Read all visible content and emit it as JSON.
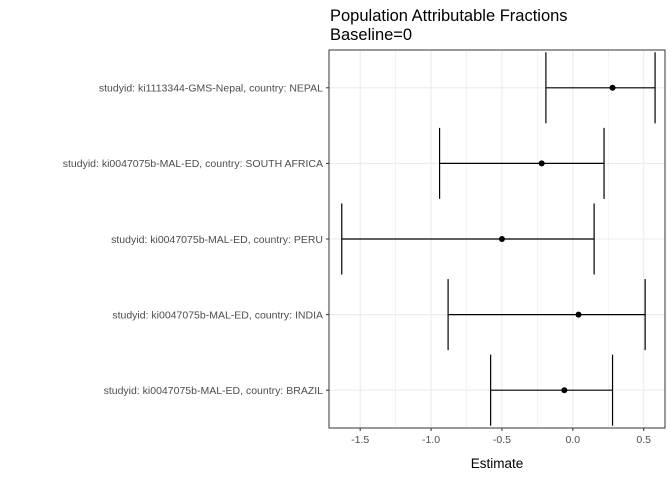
{
  "chart_data": {
    "type": "forest",
    "title": "Population Attributable Fractions",
    "subtitle": "Baseline=0",
    "xlabel": "Estimate",
    "ylabel": "",
    "xlim": [
      -1.72,
      0.65
    ],
    "xticks": [
      -1.5,
      -1.0,
      -0.5,
      0.0,
      0.5
    ],
    "xtick_labels": [
      "-1.5",
      "-1.0",
      "-0.5",
      "0.0",
      "0.5"
    ],
    "grid": true,
    "legend": "none",
    "categories": [
      "studyid: ki1113344-GMS-Nepal, country: NEPAL",
      "studyid: ki0047075b-MAL-ED, country: SOUTH AFRICA",
      "studyid: ki0047075b-MAL-ED, country: PERU",
      "studyid: ki0047075b-MAL-ED, country: INDIA",
      "studyid: ki0047075b-MAL-ED, country: BRAZIL"
    ],
    "estimate": [
      0.28,
      -0.22,
      -0.5,
      0.04,
      -0.06
    ],
    "lower": [
      -0.19,
      -0.94,
      -1.63,
      -0.88,
      -0.58
    ],
    "upper": [
      0.58,
      0.22,
      0.15,
      0.51,
      0.28
    ],
    "colors": {
      "panel_border": "#333333",
      "grid": "#ebebeb",
      "marks": "#000000"
    }
  }
}
